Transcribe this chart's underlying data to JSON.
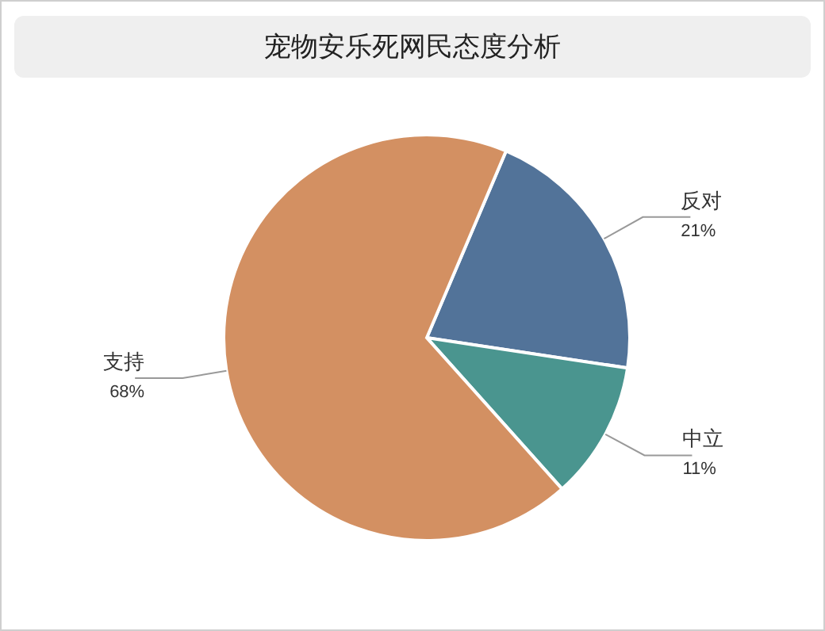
{
  "chart_data": {
    "type": "pie",
    "title": "宠物安乐死网民态度分析",
    "categories": [
      "反对",
      "中立",
      "支持"
    ],
    "values": [
      21,
      11,
      68
    ],
    "value_labels": [
      "21%",
      "11%",
      "68%"
    ],
    "colors": [
      "#527399",
      "#4a958f",
      "#d39062"
    ],
    "legend": false
  }
}
